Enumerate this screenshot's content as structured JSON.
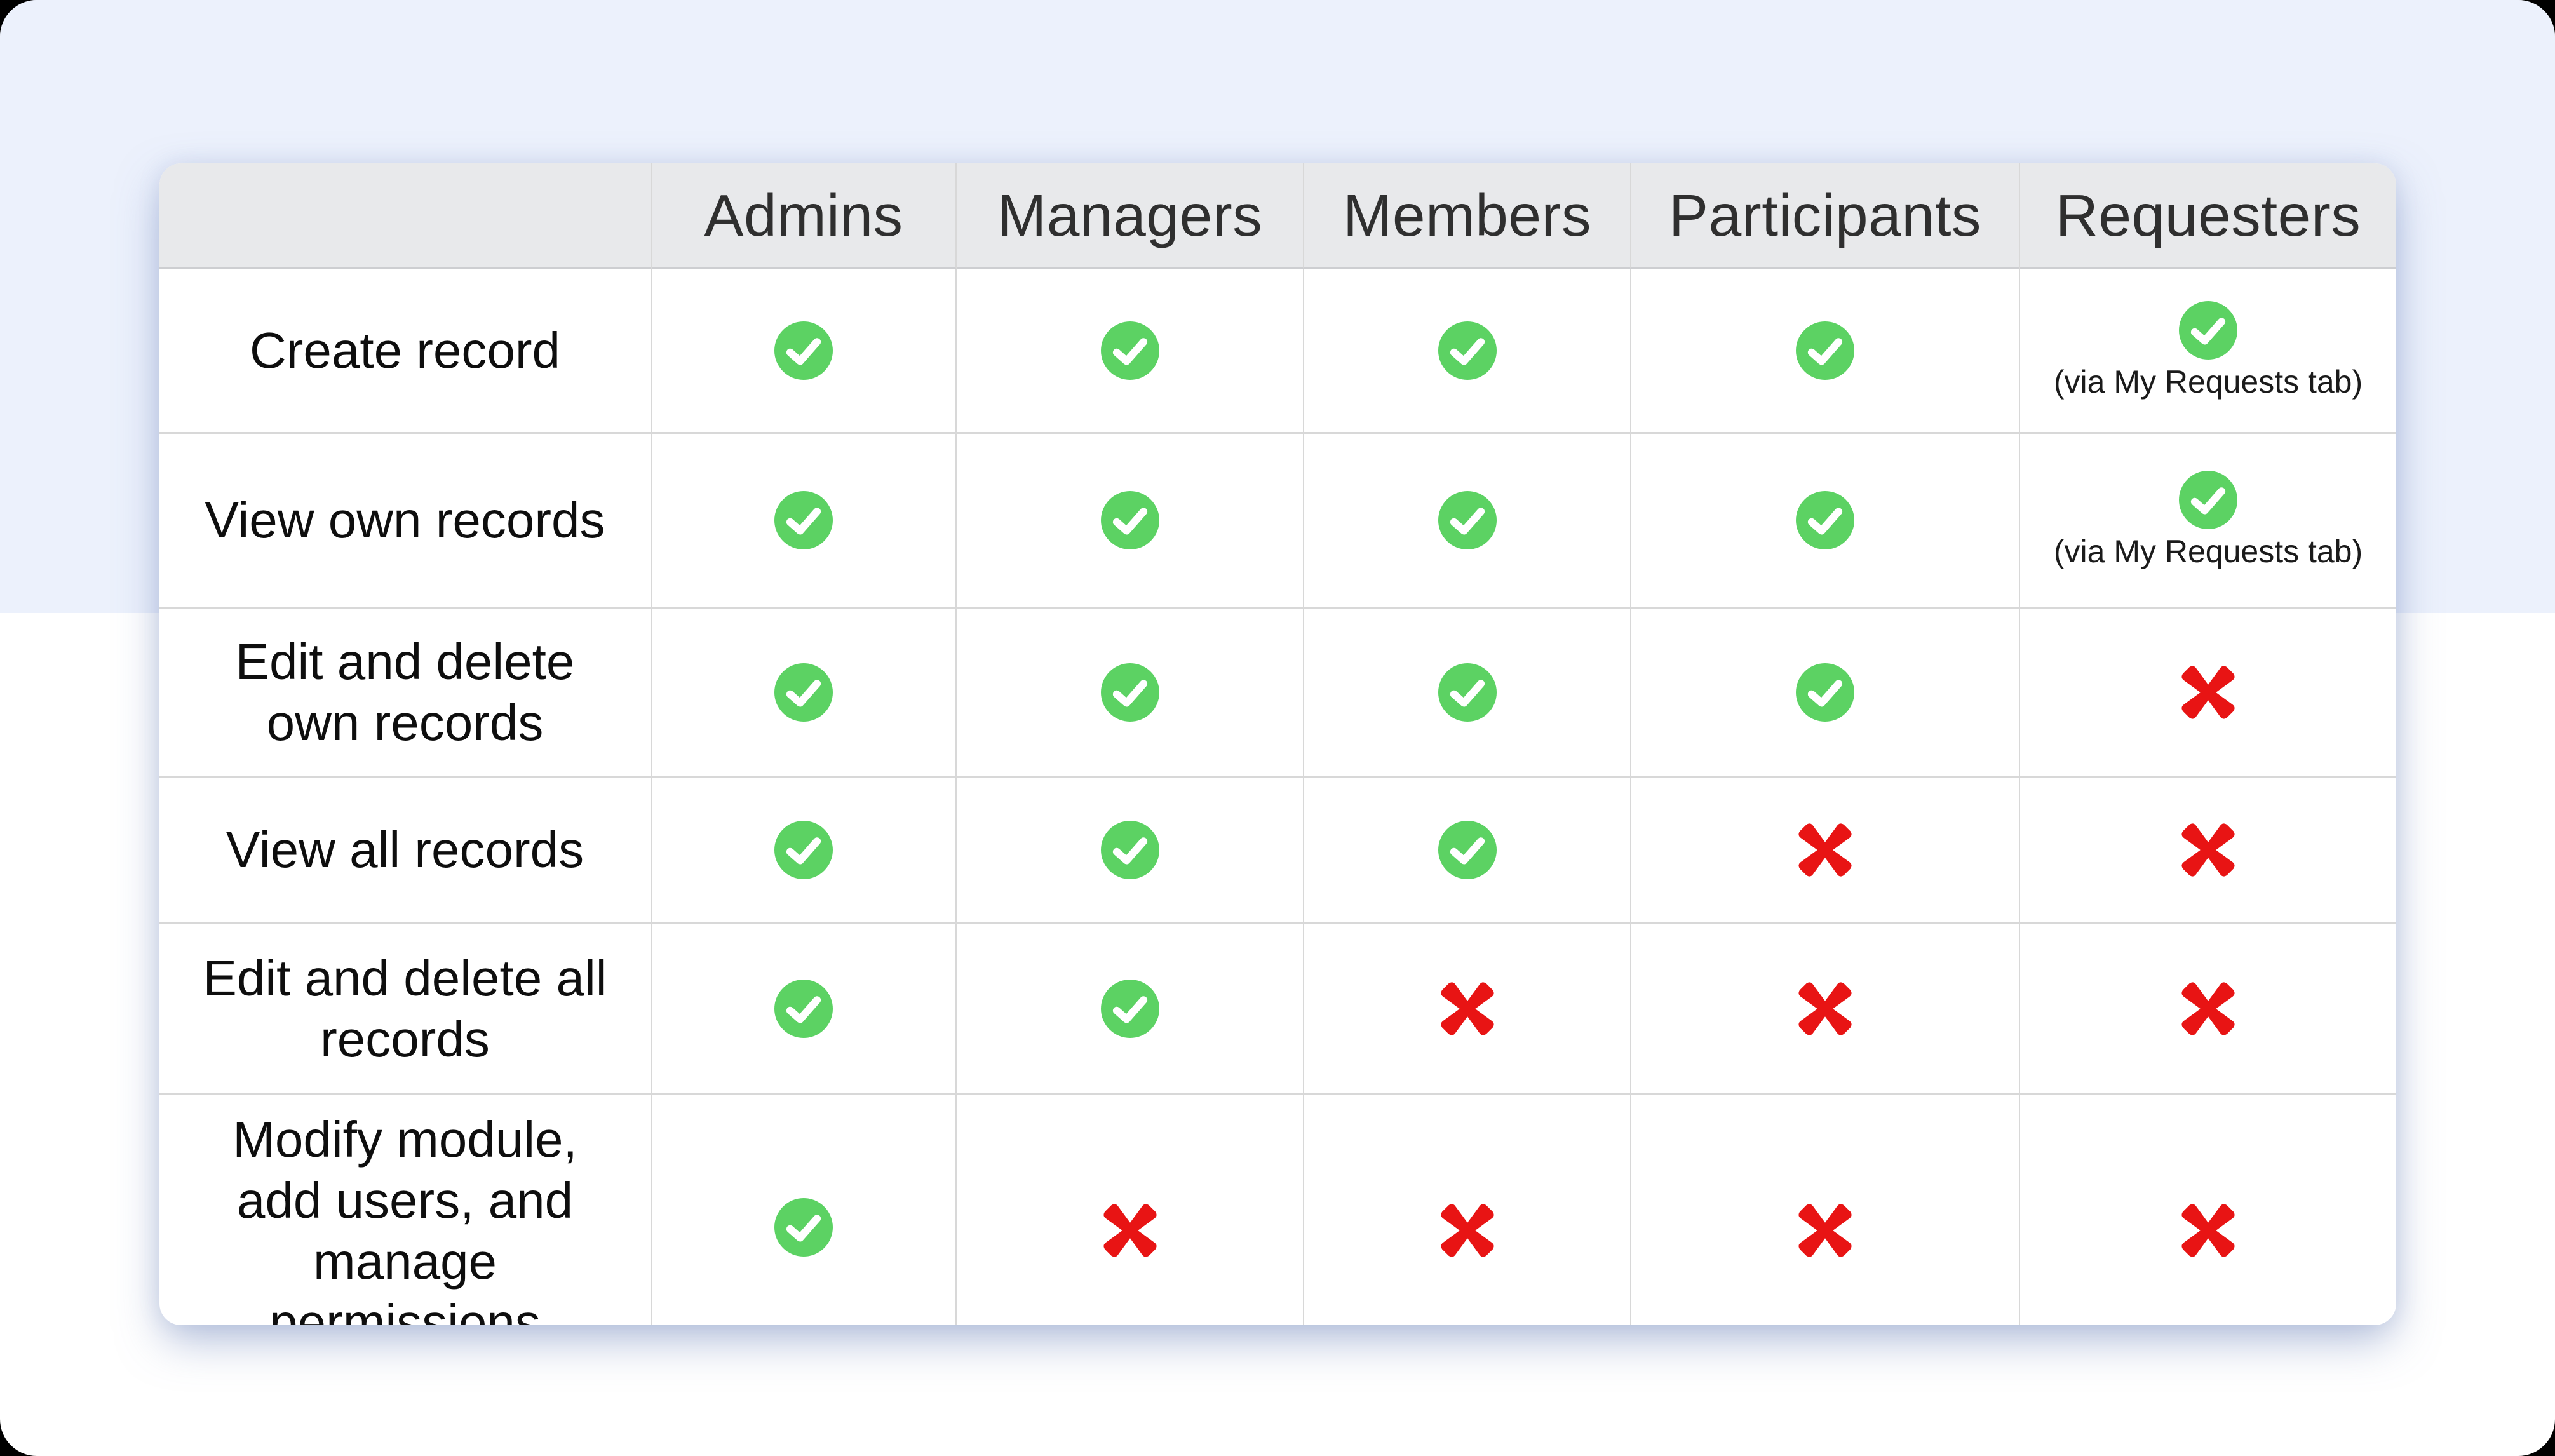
{
  "table": {
    "columns": [
      "",
      "Admins",
      "Managers",
      "Members",
      "Participants",
      "Requesters"
    ],
    "note": "(via My Requests tab)",
    "rows": [
      {
        "label": "Create record",
        "label_lines": [
          "Create record"
        ],
        "cells": [
          "check",
          "check",
          "check",
          "check",
          "check-note"
        ]
      },
      {
        "label": "View own records",
        "label_lines": [
          "View own records"
        ],
        "cells": [
          "check",
          "check",
          "check",
          "check",
          "check-note"
        ]
      },
      {
        "label": "Edit and delete own records",
        "label_lines": [
          "Edit and delete",
          "own records"
        ],
        "cells": [
          "check",
          "check",
          "check",
          "check",
          "cross"
        ]
      },
      {
        "label": "View all records",
        "label_lines": [
          "View all records"
        ],
        "cells": [
          "check",
          "check",
          "check",
          "cross",
          "cross"
        ]
      },
      {
        "label": "Edit and delete all records",
        "label_lines": [
          "Edit and delete all",
          "records"
        ],
        "cells": [
          "check",
          "check",
          "cross",
          "cross",
          "cross"
        ]
      },
      {
        "label": "Modify module, add users, and manage permissions",
        "label_lines": [
          "Modify module,",
          "add users, and",
          "manage",
          "permissions"
        ],
        "cells": [
          "check",
          "cross",
          "cross",
          "cross",
          "cross"
        ]
      }
    ]
  },
  "chart_data": {
    "type": "table",
    "title": "",
    "columns": [
      "",
      "Admins",
      "Managers",
      "Members",
      "Participants",
      "Requesters"
    ],
    "rows": [
      {
        "feature": "Create record",
        "values": [
          "yes",
          "yes",
          "yes",
          "yes",
          "yes (via My Requests tab)"
        ]
      },
      {
        "feature": "View own records",
        "values": [
          "yes",
          "yes",
          "yes",
          "yes",
          "yes (via My Requests tab)"
        ]
      },
      {
        "feature": "Edit and delete own records",
        "values": [
          "yes",
          "yes",
          "yes",
          "yes",
          "no"
        ]
      },
      {
        "feature": "View all records",
        "values": [
          "yes",
          "yes",
          "yes",
          "no",
          "no"
        ]
      },
      {
        "feature": "Edit and delete all records",
        "values": [
          "yes",
          "yes",
          "no",
          "no",
          "no"
        ]
      },
      {
        "feature": "Modify module, add users, and manage permissions",
        "values": [
          "yes",
          "no",
          "no",
          "no",
          "no"
        ]
      }
    ],
    "legend": {
      "check": "permission granted",
      "cross": "permission denied"
    }
  },
  "colors": {
    "check_green": "#5cd263",
    "cross_red": "#e81414",
    "header_bg": "#e8e9eb",
    "band_lavender": "#ecf1fc",
    "card_bg": "#ffffff",
    "grid_line": "#d8d8d8",
    "header_text": "#2f2f2f",
    "label_text": "#0e0e0e"
  }
}
